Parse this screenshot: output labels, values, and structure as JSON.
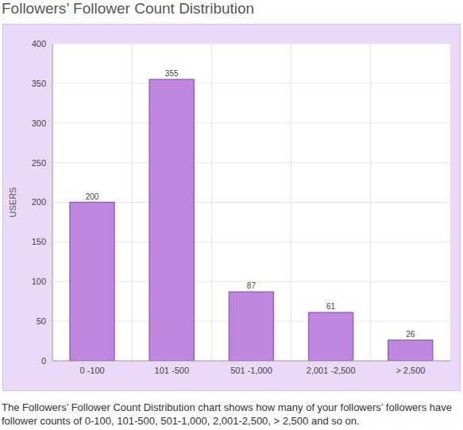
{
  "chart_data": {
    "type": "bar",
    "title": "Followers’ Follower Count Distribution",
    "caption": "The Followers’ Follower Count Distribution chart shows how many of your followers’ followers have follower counts of 0-100, 101-500, 501-1,000, 2,001-2,500, > 2,500 and so on.",
    "y_label": "USERS",
    "categories": [
      "0 -100",
      "101 -500",
      "501 -1,000",
      "2,001 -2,500",
      "> 2,500"
    ],
    "values": [
      200,
      355,
      87,
      61,
      26
    ],
    "color": "#bf87e0",
    "ylim": [
      0,
      400
    ],
    "yticks": [
      0,
      50,
      100,
      150,
      200,
      250,
      300,
      350,
      400
    ],
    "grid": true,
    "data_labels": true
  }
}
